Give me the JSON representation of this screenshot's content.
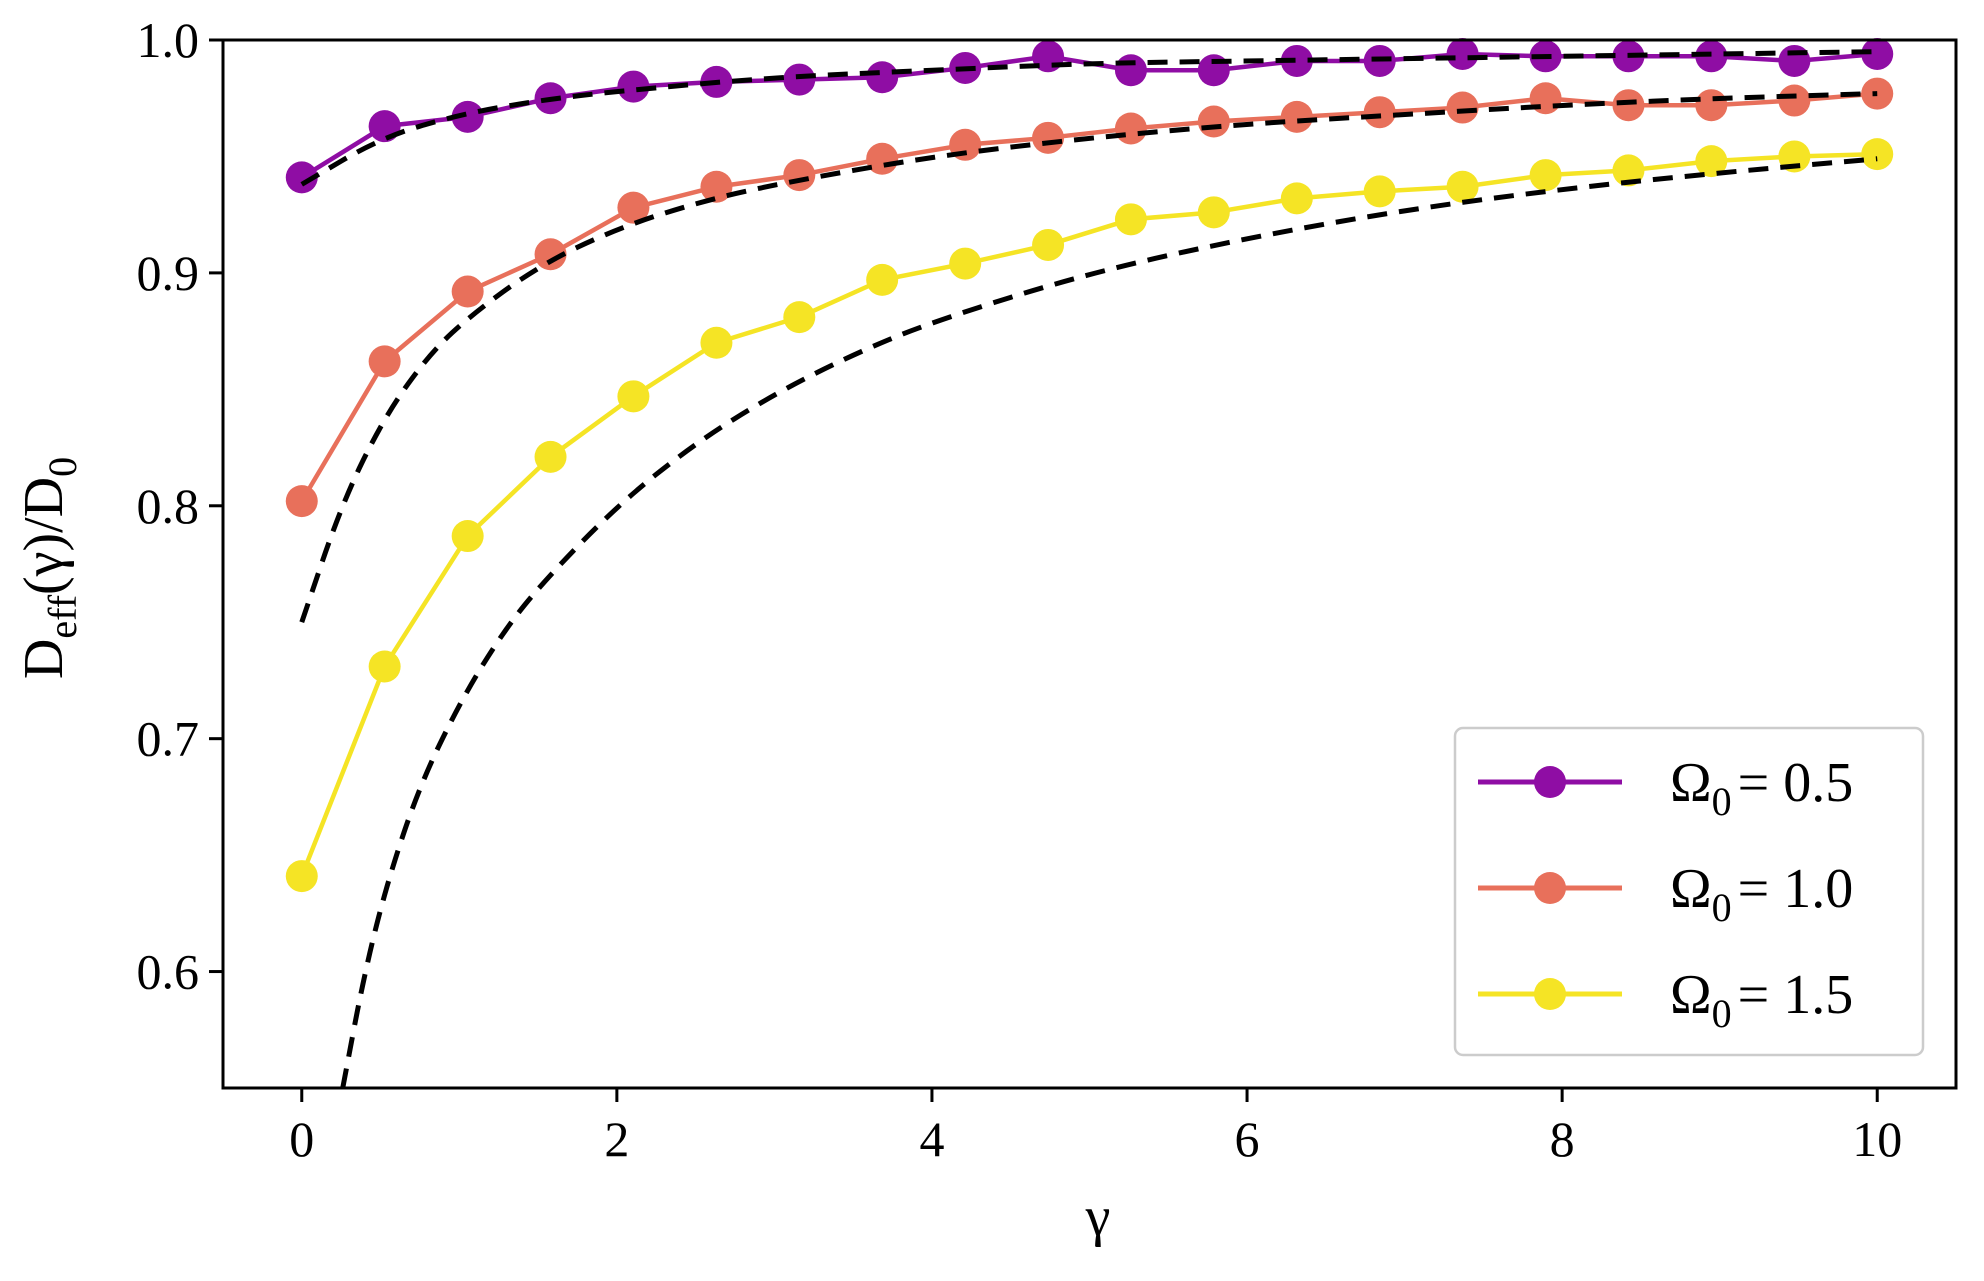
{
  "chart_data": {
    "type": "line",
    "xlabel": "γ",
    "ylabel": {
      "base": "D",
      "sub": "eff",
      "middle": "(γ)/D",
      "sub2": "0"
    },
    "xlim": [
      -0.5,
      10.5
    ],
    "ylim": [
      0.55,
      1.0
    ],
    "xticks": [
      0,
      2,
      4,
      6,
      8,
      10
    ],
    "xtick_labels": [
      "0",
      "2",
      "4",
      "6",
      "8",
      "10"
    ],
    "yticks": [
      0.6,
      0.7,
      0.8,
      0.9,
      1.0
    ],
    "ytick_labels": [
      "0.6",
      "0.7",
      "0.8",
      "0.9",
      "1.0"
    ],
    "grid": false,
    "legend_position": "lower-right",
    "x": [
      0,
      0.526,
      1.053,
      1.579,
      2.105,
      2.632,
      3.158,
      3.684,
      4.211,
      4.737,
      5.263,
      5.789,
      6.316,
      6.842,
      7.368,
      7.895,
      8.421,
      8.947,
      9.474,
      10
    ],
    "series": [
      {
        "name": "Ω₀ = 0.5",
        "legend": {
          "sym": "Ω",
          "sub": "0",
          "eq": "= 0.5"
        },
        "color": "#8f0da4",
        "values": [
          0.941,
          0.963,
          0.967,
          0.975,
          0.98,
          0.982,
          0.983,
          0.984,
          0.988,
          0.993,
          0.987,
          0.987,
          0.991,
          0.991,
          0.994,
          0.993,
          0.993,
          0.993,
          0.991,
          0.994
        ]
      },
      {
        "name": "Ω₀ = 1.0",
        "legend": {
          "sym": "Ω",
          "sub": "0",
          "eq": "= 1.0"
        },
        "color": "#e8705b",
        "values": [
          0.802,
          0.862,
          0.892,
          0.908,
          0.928,
          0.937,
          0.942,
          0.949,
          0.955,
          0.958,
          0.962,
          0.965,
          0.967,
          0.969,
          0.971,
          0.975,
          0.972,
          0.972,
          0.974,
          0.977
        ]
      },
      {
        "name": "Ω₀ = 1.5",
        "legend": {
          "sym": "Ω",
          "sub": "0",
          "eq": "= 1.5"
        },
        "color": "#f5e425",
        "values": [
          0.641,
          0.731,
          0.787,
          0.821,
          0.847,
          0.87,
          0.881,
          0.897,
          0.904,
          0.912,
          0.923,
          0.926,
          0.932,
          0.935,
          0.937,
          0.942,
          0.944,
          0.948,
          0.95,
          0.951
        ]
      }
    ],
    "reference_curves": [
      {
        "style": "dashed",
        "color": "#000000",
        "x": [
          0,
          0.5,
          1,
          1.5,
          2,
          3,
          4,
          5,
          6,
          7,
          8,
          9,
          10
        ],
        "values": [
          0.938,
          0.958,
          0.968,
          0.974,
          0.978,
          0.984,
          0.987,
          0.99,
          0.991,
          0.992,
          0.993,
          0.994,
          0.995
        ]
      },
      {
        "style": "dashed",
        "color": "#000000",
        "x": [
          0,
          0.25,
          0.5,
          0.75,
          1,
          1.5,
          2,
          2.5,
          3,
          4,
          5,
          6,
          7,
          8,
          9,
          10
        ],
        "values": [
          0.75,
          0.8,
          0.835,
          0.86,
          0.878,
          0.903,
          0.919,
          0.93,
          0.938,
          0.95,
          0.958,
          0.964,
          0.968,
          0.972,
          0.975,
          0.977
        ]
      },
      {
        "style": "dashed",
        "color": "#000000",
        "x": [
          0.26,
          0.4,
          0.55,
          0.75,
          1,
          1.25,
          1.5,
          2,
          2.5,
          3,
          3.5,
          4,
          5,
          6,
          7,
          8,
          9,
          10
        ],
        "values": [
          0.55,
          0.6,
          0.64,
          0.68,
          0.715,
          0.743,
          0.765,
          0.8,
          0.827,
          0.848,
          0.865,
          0.879,
          0.9,
          0.915,
          0.927,
          0.936,
          0.943,
          0.949
        ]
      }
    ]
  }
}
